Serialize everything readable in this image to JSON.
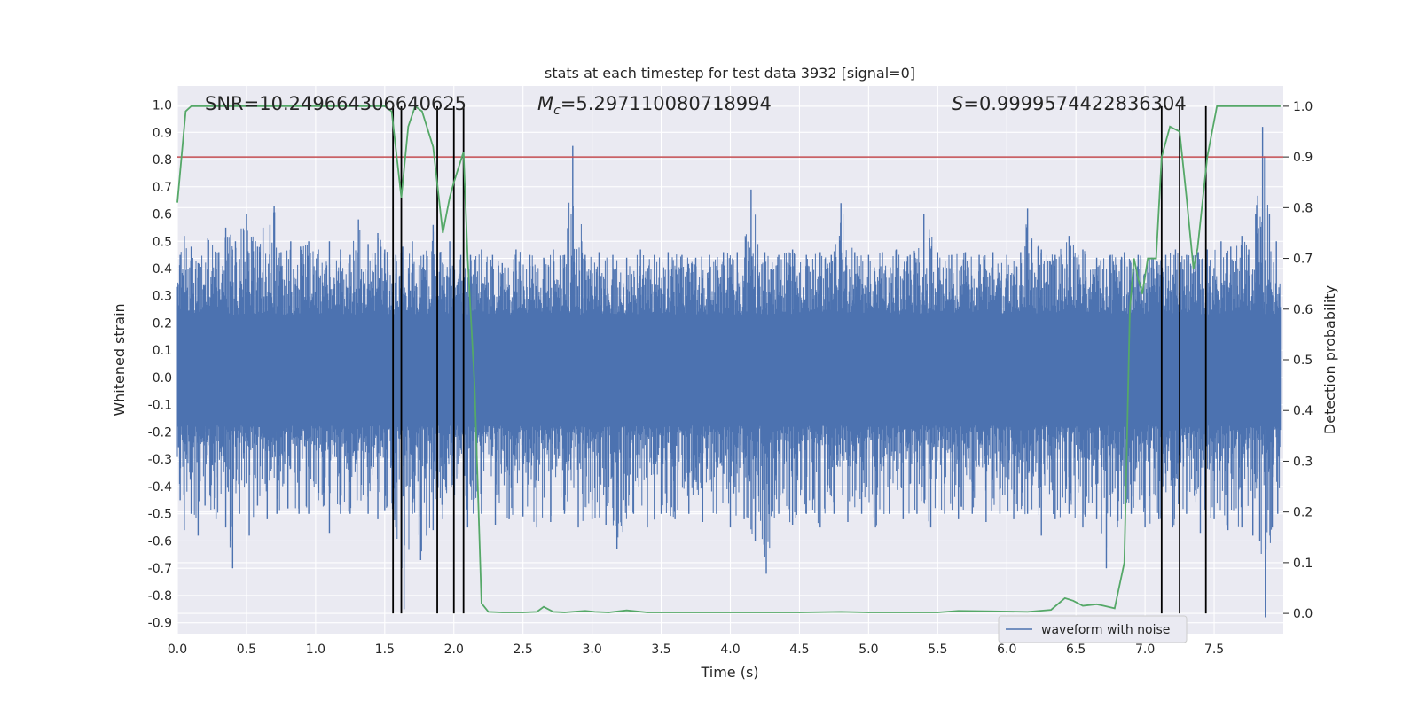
{
  "chart_data": {
    "type": "line",
    "title": "stats at each timestep for test data 3932 [signal=0]",
    "xlabel": "Time (s)",
    "ylabel": "Whitened strain",
    "y2label": "Detection probability",
    "xlim": [
      0.0,
      8.0
    ],
    "ylim": [
      -0.94,
      1.07
    ],
    "y2lim": [
      -0.04,
      1.04
    ],
    "x_ticks": [
      0.0,
      0.5,
      1.0,
      1.5,
      2.0,
      2.5,
      3.0,
      3.5,
      4.0,
      4.5,
      5.0,
      5.5,
      6.0,
      6.5,
      7.0,
      7.5
    ],
    "x_tick_labels": [
      "0.0",
      "0.5",
      "1.0",
      "1.5",
      "2.0",
      "2.5",
      "3.0",
      "3.5",
      "4.0",
      "4.5",
      "5.0",
      "5.5",
      "6.0",
      "6.5",
      "7.0",
      "7.5"
    ],
    "y_ticks": [
      1.0,
      0.9,
      0.8,
      0.7,
      0.6,
      0.5,
      0.4,
      0.3,
      0.2,
      0.1,
      0.0,
      -0.1,
      -0.2,
      -0.3,
      -0.4,
      -0.5,
      -0.6,
      -0.7,
      -0.8,
      -0.9
    ],
    "y_tick_labels": [
      "1.0",
      "0.9",
      "0.8",
      "0.7",
      "0.6",
      "0.5",
      "0.4",
      "0.3",
      "0.2",
      "0.1",
      "0.0",
      "-0.1",
      "-0.2",
      "-0.3",
      "-0.4",
      "-0.5",
      "-0.6",
      "-0.7",
      "-0.8",
      "-0.9"
    ],
    "y2_ticks": [
      1.0,
      0.9,
      0.8,
      0.7,
      0.6,
      0.5,
      0.4,
      0.3,
      0.2,
      0.1,
      0.0
    ],
    "y2_tick_labels": [
      "1.0",
      "0.9",
      "0.8",
      "0.7",
      "0.6",
      "0.5",
      "0.4",
      "0.3",
      "0.2",
      "0.1",
      "0.0"
    ],
    "annotations": {
      "snr": "SNR=10.249664306640625",
      "mc_symbol": "M",
      "mc_sub": "c",
      "mc_value": "=5.297110080718994",
      "s_symbol": "S",
      "s_value": "=0.9999574422836304"
    },
    "legend": {
      "label": "waveform with noise",
      "location": "lower-right"
    },
    "threshold": {
      "value": 0.9,
      "axis": "y2",
      "color": "#c44e52"
    },
    "vertical_markers": [
      1.56,
      1.62,
      1.88,
      2.0,
      2.07,
      7.12,
      7.25,
      7.44
    ],
    "strain_series": {
      "name": "waveform with noise",
      "color": "#4c72b0",
      "x_range": [
        0.0,
        7.98
      ],
      "typical_band": [
        -0.32,
        0.42
      ],
      "peaks": [
        {
          "x": 0.02,
          "y": 0.45
        },
        {
          "x": 0.05,
          "y": 0.52
        },
        {
          "x": 0.1,
          "y": 0.48
        },
        {
          "x": 0.15,
          "y": 0.42
        },
        {
          "x": 0.22,
          "y": 0.51
        },
        {
          "x": 0.3,
          "y": 0.46
        },
        {
          "x": 0.35,
          "y": 0.55
        },
        {
          "x": 0.42,
          "y": 0.5
        },
        {
          "x": 0.5,
          "y": 0.6
        },
        {
          "x": 0.58,
          "y": 0.48
        },
        {
          "x": 0.62,
          "y": 0.55
        },
        {
          "x": 0.67,
          "y": 0.56
        },
        {
          "x": 0.7,
          "y": 0.63
        },
        {
          "x": 0.75,
          "y": 0.46
        },
        {
          "x": 0.82,
          "y": 0.5
        },
        {
          "x": 0.9,
          "y": 0.48
        },
        {
          "x": 0.95,
          "y": 0.5
        },
        {
          "x": 1.02,
          "y": 0.47
        },
        {
          "x": 1.1,
          "y": 0.5
        },
        {
          "x": 1.18,
          "y": 0.47
        },
        {
          "x": 1.25,
          "y": 0.45
        },
        {
          "x": 1.31,
          "y": 0.58
        },
        {
          "x": 1.38,
          "y": 0.49
        },
        {
          "x": 1.45,
          "y": 0.53
        },
        {
          "x": 1.5,
          "y": 0.47
        },
        {
          "x": 1.58,
          "y": 0.45
        },
        {
          "x": 1.63,
          "y": 0.48
        },
        {
          "x": 1.7,
          "y": 0.5
        },
        {
          "x": 1.78,
          "y": 0.45
        },
        {
          "x": 1.85,
          "y": 0.56
        },
        {
          "x": 1.9,
          "y": 0.46
        },
        {
          "x": 1.97,
          "y": 0.5
        },
        {
          "x": 2.05,
          "y": 0.45
        },
        {
          "x": 2.12,
          "y": 0.45
        },
        {
          "x": 2.2,
          "y": 0.47
        },
        {
          "x": 2.28,
          "y": 0.45
        },
        {
          "x": 2.35,
          "y": 0.42
        },
        {
          "x": 2.45,
          "y": 0.47
        },
        {
          "x": 2.55,
          "y": 0.45
        },
        {
          "x": 2.65,
          "y": 0.44
        },
        {
          "x": 2.72,
          "y": 0.47
        },
        {
          "x": 2.8,
          "y": 0.45
        },
        {
          "x": 2.86,
          "y": 0.85
        },
        {
          "x": 2.95,
          "y": 0.45
        },
        {
          "x": 3.05,
          "y": 0.46
        },
        {
          "x": 3.15,
          "y": 0.45
        },
        {
          "x": 3.25,
          "y": 0.44
        },
        {
          "x": 3.35,
          "y": 0.47
        },
        {
          "x": 3.45,
          "y": 0.45
        },
        {
          "x": 3.55,
          "y": 0.46
        },
        {
          "x": 3.65,
          "y": 0.45
        },
        {
          "x": 3.75,
          "y": 0.44
        },
        {
          "x": 3.85,
          "y": 0.45
        },
        {
          "x": 3.95,
          "y": 0.46
        },
        {
          "x": 4.05,
          "y": 0.46
        },
        {
          "x": 4.15,
          "y": 0.69
        },
        {
          "x": 4.25,
          "y": 0.46
        },
        {
          "x": 4.35,
          "y": 0.45
        },
        {
          "x": 4.45,
          "y": 0.47
        },
        {
          "x": 4.55,
          "y": 0.45
        },
        {
          "x": 4.65,
          "y": 0.46
        },
        {
          "x": 4.73,
          "y": 0.45
        },
        {
          "x": 4.8,
          "y": 0.64
        },
        {
          "x": 4.9,
          "y": 0.46
        },
        {
          "x": 5.0,
          "y": 0.45
        },
        {
          "x": 5.1,
          "y": 0.46
        },
        {
          "x": 5.2,
          "y": 0.47
        },
        {
          "x": 5.3,
          "y": 0.45
        },
        {
          "x": 5.4,
          "y": 0.6
        },
        {
          "x": 5.5,
          "y": 0.46
        },
        {
          "x": 5.6,
          "y": 0.45
        },
        {
          "x": 5.7,
          "y": 0.46
        },
        {
          "x": 5.8,
          "y": 0.45
        },
        {
          "x": 5.9,
          "y": 0.46
        },
        {
          "x": 6.0,
          "y": 0.45
        },
        {
          "x": 6.1,
          "y": 0.46
        },
        {
          "x": 6.15,
          "y": 0.62
        },
        {
          "x": 6.25,
          "y": 0.47
        },
        {
          "x": 6.35,
          "y": 0.45
        },
        {
          "x": 6.45,
          "y": 0.52
        },
        {
          "x": 6.55,
          "y": 0.47
        },
        {
          "x": 6.65,
          "y": 0.44
        },
        {
          "x": 6.75,
          "y": 0.45
        },
        {
          "x": 6.85,
          "y": 0.46
        },
        {
          "x": 6.95,
          "y": 0.45
        },
        {
          "x": 7.05,
          "y": 0.44
        },
        {
          "x": 7.15,
          "y": 0.45
        },
        {
          "x": 7.22,
          "y": 0.47
        },
        {
          "x": 7.3,
          "y": 0.45
        },
        {
          "x": 7.38,
          "y": 0.46
        },
        {
          "x": 7.45,
          "y": 0.47
        },
        {
          "x": 7.55,
          "y": 0.5
        },
        {
          "x": 7.62,
          "y": 0.48
        },
        {
          "x": 7.7,
          "y": 0.52
        },
        {
          "x": 7.75,
          "y": 0.47
        },
        {
          "x": 7.8,
          "y": 0.6
        },
        {
          "x": 7.85,
          "y": 0.92
        },
        {
          "x": 7.9,
          "y": 0.6
        },
        {
          "x": 7.95,
          "y": 0.5
        }
      ],
      "troughs": [
        {
          "x": 0.02,
          "y": -0.45
        },
        {
          "x": 0.05,
          "y": -0.56
        },
        {
          "x": 0.1,
          "y": -0.5
        },
        {
          "x": 0.15,
          "y": -0.58
        },
        {
          "x": 0.2,
          "y": -0.47
        },
        {
          "x": 0.28,
          "y": -0.52
        },
        {
          "x": 0.35,
          "y": -0.55
        },
        {
          "x": 0.4,
          "y": -0.7
        },
        {
          "x": 0.45,
          "y": -0.5
        },
        {
          "x": 0.52,
          "y": -0.58
        },
        {
          "x": 0.58,
          "y": -0.47
        },
        {
          "x": 0.65,
          "y": -0.52
        },
        {
          "x": 0.72,
          "y": -0.5
        },
        {
          "x": 0.8,
          "y": -0.48
        },
        {
          "x": 0.88,
          "y": -0.5
        },
        {
          "x": 0.95,
          "y": -0.5
        },
        {
          "x": 1.02,
          "y": -0.45
        },
        {
          "x": 1.1,
          "y": -0.57
        },
        {
          "x": 1.18,
          "y": -0.5
        },
        {
          "x": 1.25,
          "y": -0.5
        },
        {
          "x": 1.3,
          "y": -0.45
        },
        {
          "x": 1.38,
          "y": -0.5
        },
        {
          "x": 1.45,
          "y": -0.52
        },
        {
          "x": 1.5,
          "y": -0.49
        },
        {
          "x": 1.58,
          "y": -0.55
        },
        {
          "x": 1.64,
          "y": -0.85
        },
        {
          "x": 1.7,
          "y": -0.5
        },
        {
          "x": 1.76,
          "y": -0.67
        },
        {
          "x": 1.85,
          "y": -0.56
        },
        {
          "x": 1.92,
          "y": -0.52
        },
        {
          "x": 2.0,
          "y": -0.52
        },
        {
          "x": 2.1,
          "y": -0.55
        },
        {
          "x": 2.2,
          "y": -0.5
        },
        {
          "x": 2.3,
          "y": -0.54
        },
        {
          "x": 2.4,
          "y": -0.52
        },
        {
          "x": 2.5,
          "y": -0.51
        },
        {
          "x": 2.6,
          "y": -0.55
        },
        {
          "x": 2.7,
          "y": -0.53
        },
        {
          "x": 2.8,
          "y": -0.5
        },
        {
          "x": 2.9,
          "y": -0.55
        },
        {
          "x": 3.0,
          "y": -0.52
        },
        {
          "x": 3.1,
          "y": -0.54
        },
        {
          "x": 3.18,
          "y": -0.63
        },
        {
          "x": 3.3,
          "y": -0.5
        },
        {
          "x": 3.4,
          "y": -0.55
        },
        {
          "x": 3.5,
          "y": -0.5
        },
        {
          "x": 3.6,
          "y": -0.52
        },
        {
          "x": 3.7,
          "y": -0.5
        },
        {
          "x": 3.8,
          "y": -0.53
        },
        {
          "x": 3.9,
          "y": -0.5
        },
        {
          "x": 4.0,
          "y": -0.55
        },
        {
          "x": 4.1,
          "y": -0.52
        },
        {
          "x": 4.18,
          "y": -0.6
        },
        {
          "x": 4.26,
          "y": -0.72
        },
        {
          "x": 4.35,
          "y": -0.5
        },
        {
          "x": 4.45,
          "y": -0.54
        },
        {
          "x": 4.55,
          "y": -0.5
        },
        {
          "x": 4.65,
          "y": -0.55
        },
        {
          "x": 4.75,
          "y": -0.5
        },
        {
          "x": 4.85,
          "y": -0.53
        },
        {
          "x": 4.95,
          "y": -0.5
        },
        {
          "x": 5.05,
          "y": -0.55
        },
        {
          "x": 5.15,
          "y": -0.5
        },
        {
          "x": 5.25,
          "y": -0.52
        },
        {
          "x": 5.35,
          "y": -0.5
        },
        {
          "x": 5.45,
          "y": -0.55
        },
        {
          "x": 5.55,
          "y": -0.5
        },
        {
          "x": 5.65,
          "y": -0.52
        },
        {
          "x": 5.75,
          "y": -0.5
        },
        {
          "x": 5.85,
          "y": -0.53
        },
        {
          "x": 5.95,
          "y": -0.5
        },
        {
          "x": 6.05,
          "y": -0.52
        },
        {
          "x": 6.15,
          "y": -0.5
        },
        {
          "x": 6.25,
          "y": -0.58
        },
        {
          "x": 6.35,
          "y": -0.52
        },
        {
          "x": 6.45,
          "y": -0.5
        },
        {
          "x": 6.55,
          "y": -0.55
        },
        {
          "x": 6.65,
          "y": -0.52
        },
        {
          "x": 6.72,
          "y": -0.7
        },
        {
          "x": 6.8,
          "y": -0.55
        },
        {
          "x": 6.9,
          "y": -0.5
        },
        {
          "x": 7.0,
          "y": -0.55
        },
        {
          "x": 7.1,
          "y": -0.52
        },
        {
          "x": 7.2,
          "y": -0.55
        },
        {
          "x": 7.3,
          "y": -0.5
        },
        {
          "x": 7.4,
          "y": -0.57
        },
        {
          "x": 7.5,
          "y": -0.52
        },
        {
          "x": 7.6,
          "y": -0.56
        },
        {
          "x": 7.7,
          "y": -0.55
        },
        {
          "x": 7.78,
          "y": -0.58
        },
        {
          "x": 7.83,
          "y": -0.6
        },
        {
          "x": 7.87,
          "y": -0.88
        },
        {
          "x": 7.92,
          "y": -0.55
        },
        {
          "x": 7.96,
          "y": -0.5
        }
      ]
    },
    "probability_series": {
      "name": "detection probability",
      "axis": "y2",
      "color": "#55a868",
      "x": [
        0.0,
        0.06,
        0.1,
        0.15,
        0.3,
        0.5,
        1.0,
        1.5,
        1.55,
        1.62,
        1.67,
        1.72,
        1.77,
        1.85,
        1.92,
        1.97,
        2.0,
        2.07,
        2.1,
        2.15,
        2.2,
        2.25,
        2.35,
        2.5,
        2.6,
        2.65,
        2.72,
        2.8,
        2.95,
        3.02,
        3.12,
        3.25,
        3.4,
        3.6,
        4.0,
        4.5,
        4.8,
        5.0,
        5.5,
        5.65,
        5.9,
        6.15,
        6.32,
        6.42,
        6.48,
        6.55,
        6.65,
        6.7,
        6.78,
        6.85,
        6.89,
        6.92,
        6.95,
        6.98,
        7.02,
        7.08,
        7.12,
        7.18,
        7.25,
        7.3,
        7.35,
        7.38,
        7.45,
        7.52,
        7.58,
        7.65,
        7.98
      ],
      "values": [
        0.81,
        0.99,
        1.0,
        1.0,
        1.0,
        1.0,
        1.0,
        1.0,
        0.99,
        0.82,
        0.96,
        1.0,
        0.99,
        0.92,
        0.75,
        0.82,
        0.85,
        0.91,
        0.7,
        0.45,
        0.02,
        0.003,
        0.002,
        0.002,
        0.003,
        0.013,
        0.003,
        0.002,
        0.005,
        0.003,
        0.002,
        0.006,
        0.002,
        0.002,
        0.002,
        0.002,
        0.003,
        0.002,
        0.002,
        0.005,
        0.004,
        0.003,
        0.007,
        0.03,
        0.025,
        0.015,
        0.018,
        0.015,
        0.01,
        0.1,
        0.6,
        0.7,
        0.66,
        0.63,
        0.7,
        0.7,
        0.9,
        0.96,
        0.95,
        0.82,
        0.68,
        0.72,
        0.9,
        1.0,
        1.0,
        1.0,
        1.0
      ]
    }
  }
}
